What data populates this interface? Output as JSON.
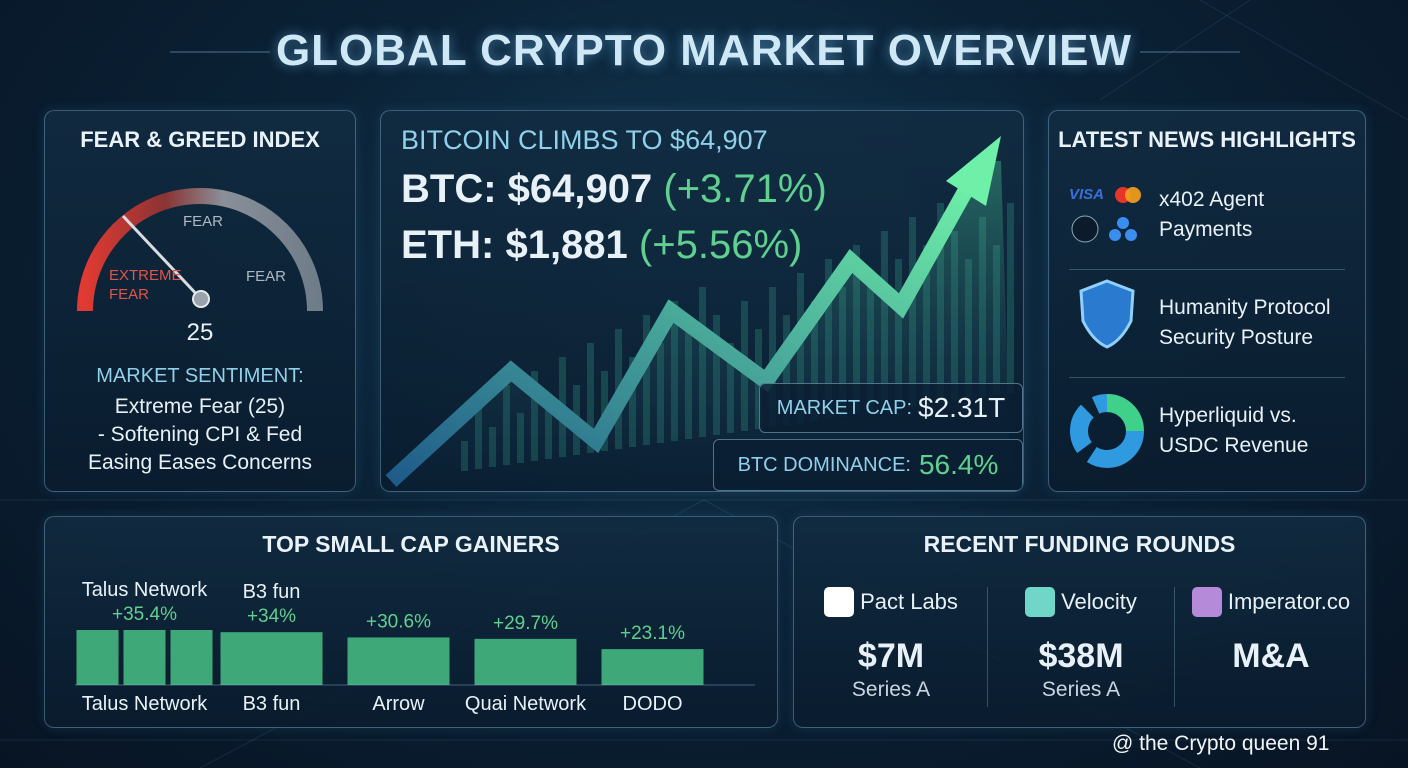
{
  "header": {
    "title": "GLOBAL CRYPTO MARKET OVERVIEW"
  },
  "fear_greed": {
    "title": "FEAR & GREED INDEX",
    "gauge_labels": [
      "EXTREME",
      "FEAR",
      "FEAR",
      "FEAR"
    ],
    "index": "25",
    "sentiment_label": "MARKET SENTIMENT:",
    "sentiment_lines": [
      "Extreme Fear (25)",
      "- Softening CPI & Fed",
      "Easing Eases Concerns"
    ]
  },
  "hero": {
    "headline": "BITCOIN CLIMBS TO $64,907",
    "btc": {
      "label": "BTC:",
      "price": "$64,907",
      "change": "(+3.71%)"
    },
    "eth": {
      "label": "ETH:",
      "price": "$1,881",
      "change": "(+5.56%)"
    },
    "market_cap": {
      "label": "MARKET CAP:",
      "value": "$2.31T"
    },
    "dominance": {
      "label": "BTC DOMINANCE:",
      "value": "56.4%"
    }
  },
  "news": {
    "title": "LATEST NEWS HIGHLIGHTS",
    "logo_text": "VISA",
    "items": [
      [
        "x402 Agent",
        "Payments"
      ],
      [
        "Humanity Protocol",
        "Security Posture"
      ],
      [
        "Hyperliquid vs.",
        "USDC Revenue"
      ]
    ]
  },
  "gainers": {
    "title": "TOP SMALL CAP GAINERS",
    "chart_data": {
      "type": "bar",
      "categories": [
        "Talus Network",
        "B3 fun",
        "Arrow",
        "Quai Network",
        "DODO"
      ],
      "top_names": [
        "Talus Network",
        "B3 fun",
        null,
        null,
        null
      ],
      "values": [
        35.4,
        34,
        30.6,
        29.7,
        23.1
      ],
      "value_labels": [
        "+35.4%",
        "+34%",
        "+30.6%",
        "+29.7%",
        "+23.1%"
      ],
      "color": "#3fa878"
    }
  },
  "funding": {
    "title": "RECENT FUNDING ROUNDS",
    "items": [
      {
        "name": "Pact Labs",
        "amount": "$7M",
        "round": "Series A"
      },
      {
        "name": "Velocity",
        "amount": "$38M",
        "round": "Series A"
      },
      {
        "name": "Imperator.co",
        "amount": "M&A"
      }
    ]
  },
  "watermark": "@ the Crypto queen 91"
}
